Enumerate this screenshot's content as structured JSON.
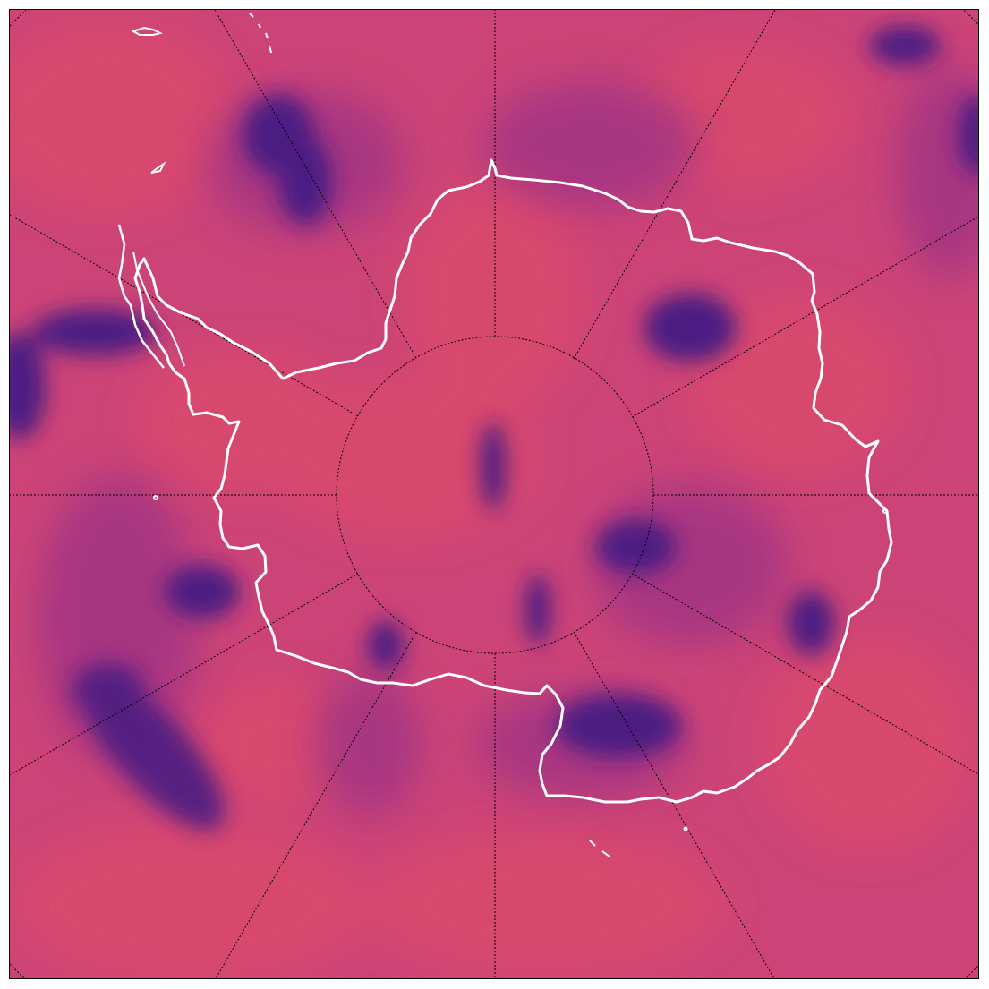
{
  "map": {
    "projection": "south-polar-stereographic",
    "colormap": "magma",
    "background_color": "#cc4477",
    "colors": {
      "field_dark": "#4a1d7f",
      "field_mid": "#8b2f85",
      "field_warm": "#d7476f",
      "coastline": "#ffffff",
      "graticule": "#000000"
    },
    "graticule": {
      "meridian_step_degrees": 30,
      "parallel_latitude_degrees": -80,
      "line_style": "dotted"
    },
    "features": [
      "coastline",
      "graticule",
      "colored field"
    ]
  }
}
